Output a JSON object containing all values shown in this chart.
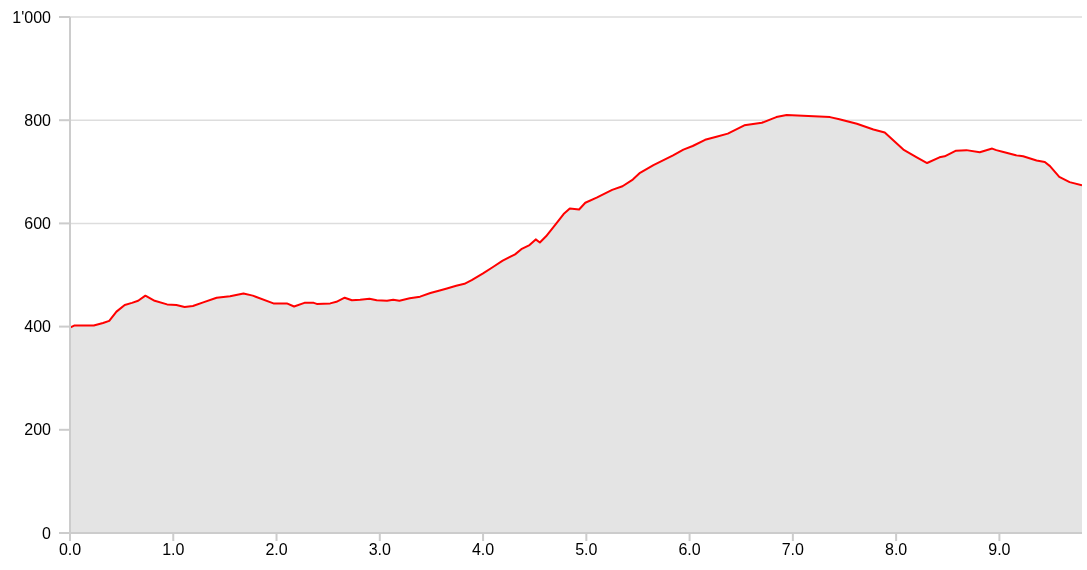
{
  "chart_data": {
    "type": "area",
    "color": "#ff0000",
    "xlim": [
      0,
      9.8
    ],
    "xticks": [
      {
        "value": 0,
        "label": "0.0"
      },
      {
        "value": 1,
        "label": "1.0"
      },
      {
        "value": 2,
        "label": "2.0"
      },
      {
        "value": 3,
        "label": "3.0"
      },
      {
        "value": 4,
        "label": "4.0"
      },
      {
        "value": 5,
        "label": "5.0"
      },
      {
        "value": 6,
        "label": "6.0"
      },
      {
        "value": 7,
        "label": "7.0"
      },
      {
        "value": 8,
        "label": "8.0"
      },
      {
        "value": 9,
        "label": "9.0"
      }
    ],
    "ylim": [
      0,
      1000
    ],
    "yticks": [
      0,
      200,
      400,
      600,
      800,
      {
        "value": 1000,
        "label": "1'000"
      }
    ],
    "grid": "y",
    "x": [
      0,
      0.04,
      0.23,
      0.32,
      0.38,
      0.45,
      0.53,
      0.6,
      0.66,
      0.73,
      0.82,
      0.94,
      1.03,
      1.11,
      1.19,
      1.29,
      1.42,
      1.55,
      1.68,
      1.77,
      1.97,
      2.1,
      2.17,
      2.27,
      2.36,
      2.39,
      2.52,
      2.58,
      2.66,
      2.73,
      2.81,
      2.9,
      2.97,
      3.07,
      3.13,
      3.19,
      3.29,
      3.39,
      3.49,
      3.58,
      3.65,
      3.74,
      3.82,
      3.89,
      4.0,
      4.1,
      4.19,
      4.31,
      4.37,
      4.45,
      4.51,
      4.55,
      4.61,
      4.71,
      4.78,
      4.84,
      4.93,
      4.99,
      5.1,
      5.25,
      5.35,
      5.45,
      5.52,
      5.65,
      5.84,
      5.94,
      6.03,
      6.15,
      6.26,
      6.37,
      6.53,
      6.7,
      6.84,
      6.94,
      7.15,
      7.36,
      7.45,
      7.62,
      7.78,
      7.89,
      8.07,
      8.2,
      8.3,
      8.42,
      8.47,
      8.58,
      8.68,
      8.81,
      8.93,
      8.97,
      9.03,
      9.16,
      9.23,
      9.36,
      9.44,
      9.49,
      9.58,
      9.68,
      9.8
    ],
    "values": [
      398,
      402,
      402,
      407,
      411,
      429,
      442,
      446,
      450,
      460,
      450,
      443,
      442,
      438,
      440,
      447,
      456,
      459,
      464,
      460,
      445,
      445,
      439,
      446,
      446,
      444,
      445,
      448,
      456,
      451,
      452,
      454,
      451,
      450,
      452,
      450,
      455,
      458,
      465,
      470,
      474,
      479,
      483,
      490,
      503,
      516,
      528,
      540,
      550,
      558,
      569,
      563,
      575,
      600,
      618,
      629,
      627,
      640,
      650,
      665,
      672,
      685,
      698,
      713,
      732,
      743,
      750,
      762,
      768,
      774,
      790,
      795,
      806,
      810,
      808,
      806,
      802,
      793,
      782,
      776,
      743,
      728,
      717,
      728,
      730,
      741,
      742,
      738,
      745,
      742,
      739,
      732,
      730,
      722,
      719,
      711,
      690,
      680,
      674
    ]
  }
}
